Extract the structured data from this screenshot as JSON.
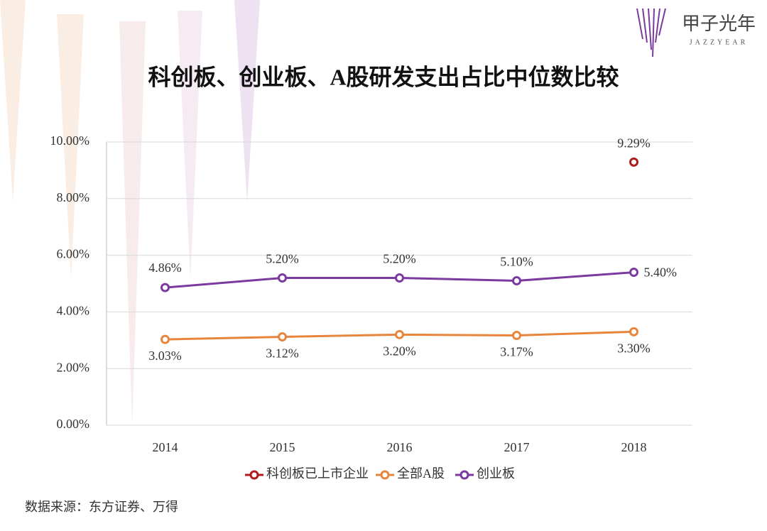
{
  "brand": {
    "name": "甲子光年",
    "subname": "JAZZYEAR"
  },
  "source": "数据来源：东方证券、万得",
  "chart_data": {
    "type": "line",
    "title": "科创板、创业板、A股研发支出占比中位数比较",
    "categories": [
      "2014",
      "2015",
      "2016",
      "2017",
      "2018"
    ],
    "series": [
      {
        "name": "科创板已上市企业",
        "color": "#b01c1c",
        "values": [
          null,
          null,
          null,
          null,
          9.29
        ],
        "value_labels": [
          null,
          null,
          null,
          null,
          "9.29%"
        ]
      },
      {
        "name": "全部A股",
        "color": "#e8853d",
        "values": [
          3.03,
          3.12,
          3.2,
          3.17,
          3.3
        ],
        "value_labels": [
          "3.03%",
          "3.12%",
          "3.20%",
          "3.17%",
          "3.30%"
        ]
      },
      {
        "name": "创业板",
        "color": "#7a3aa0",
        "values": [
          4.86,
          5.2,
          5.2,
          5.1,
          5.4
        ],
        "value_labels": [
          "4.86%",
          "5.20%",
          "5.20%",
          "5.10%",
          "5.40%"
        ]
      }
    ],
    "ylim": [
      0,
      10
    ],
    "yticks": [
      {
        "value": 0,
        "label": "0.00%"
      },
      {
        "value": 2,
        "label": "2.00%"
      },
      {
        "value": 4,
        "label": "4.00%"
      },
      {
        "value": 6,
        "label": "6.00%"
      },
      {
        "value": 8,
        "label": "8.00%"
      },
      {
        "value": 10,
        "label": "10.00%"
      }
    ],
    "grid": true,
    "legend": "bottom"
  }
}
